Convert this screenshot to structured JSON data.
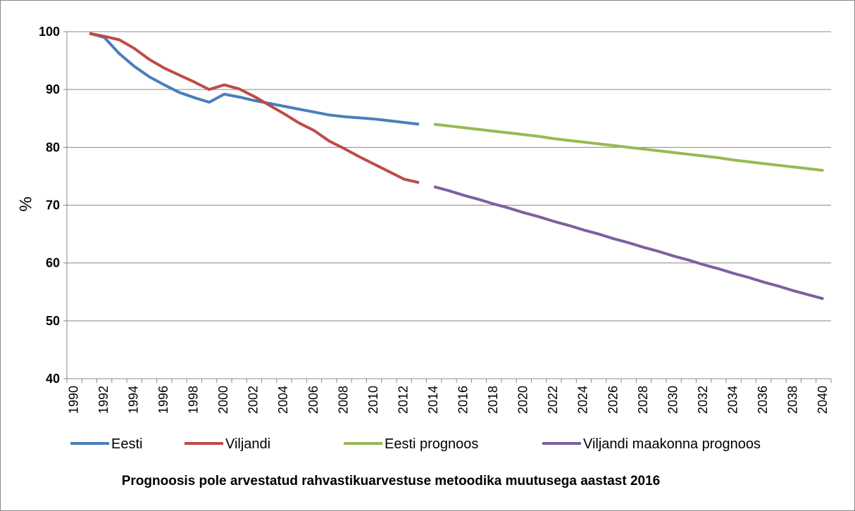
{
  "chart_data": {
    "type": "line",
    "y_label": "%",
    "note": "Prognoosis pole arvestatud rahvastikuarvestuse metoodika muutusega aastast 2016",
    "categories": [
      "1990",
      null,
      "1992",
      null,
      "1994",
      null,
      "1996",
      null,
      "1998",
      null,
      "2000",
      null,
      "2002",
      null,
      "2004",
      null,
      "2006",
      null,
      "2008",
      null,
      "2010",
      null,
      "2012",
      null,
      "2014",
      null,
      "2016",
      null,
      "2018",
      null,
      "2020",
      null,
      "2022",
      null,
      "2024",
      null,
      "2026",
      null,
      "2028",
      null,
      "2030",
      null,
      "2032",
      null,
      "2034",
      null,
      "2036",
      null,
      "2038",
      null,
      "2040"
    ],
    "series": [
      {
        "name": "Eesti",
        "color": "#4a7ebb",
        "values": [
          null,
          99.7,
          99.0,
          96.2,
          94.0,
          92.2,
          90.8,
          89.5,
          88.6,
          87.8,
          89.2,
          88.7,
          88.1,
          87.6,
          87.1,
          86.6,
          86.1,
          85.6,
          85.3,
          85.1,
          84.9,
          84.6,
          84.3,
          84.0,
          null,
          null,
          null,
          null,
          null,
          null,
          null,
          null,
          null,
          null,
          null,
          null,
          null,
          null,
          null,
          null,
          null,
          null,
          null,
          null,
          null,
          null,
          null,
          null,
          null,
          null,
          null
        ]
      },
      {
        "name": "Viljandi",
        "color": "#be4b48",
        "values": [
          null,
          99.7,
          99.2,
          98.6,
          97.1,
          95.2,
          93.7,
          92.5,
          91.3,
          90.0,
          90.8,
          90.1,
          88.8,
          87.3,
          85.8,
          84.2,
          82.9,
          81.1,
          79.8,
          78.4,
          77.1,
          75.8,
          74.5,
          73.9,
          null,
          null,
          null,
          null,
          null,
          null,
          null,
          null,
          null,
          null,
          null,
          null,
          null,
          null,
          null,
          null,
          null,
          null,
          null,
          null,
          null,
          null,
          null,
          null,
          null,
          null,
          null
        ]
      },
      {
        "name": "Eesti prognoos",
        "color": "#98b954",
        "values": [
          null,
          null,
          null,
          null,
          null,
          null,
          null,
          null,
          null,
          null,
          null,
          null,
          null,
          null,
          null,
          null,
          null,
          null,
          null,
          null,
          null,
          null,
          null,
          null,
          84.0,
          83.7,
          83.4,
          83.1,
          82.8,
          82.5,
          82.2,
          81.9,
          81.5,
          81.2,
          80.9,
          80.6,
          80.3,
          80.0,
          79.7,
          79.4,
          79.1,
          78.8,
          78.5,
          78.2,
          77.8,
          77.5,
          77.2,
          76.9,
          76.6,
          76.3,
          76.0
        ]
      },
      {
        "name": "Viljandi maakonna prognoos",
        "color": "#7d60a0",
        "values": [
          null,
          null,
          null,
          null,
          null,
          null,
          null,
          null,
          null,
          null,
          null,
          null,
          null,
          null,
          null,
          null,
          null,
          null,
          null,
          null,
          null,
          null,
          null,
          null,
          73.2,
          72.5,
          71.7,
          71.0,
          70.2,
          69.5,
          68.7,
          68.0,
          67.2,
          66.5,
          65.7,
          65.0,
          64.2,
          63.5,
          62.7,
          62.0,
          61.2,
          60.5,
          59.7,
          59.0,
          58.2,
          57.5,
          56.7,
          56.0,
          55.2,
          54.5,
          53.8
        ]
      }
    ],
    "ylim": [
      40,
      100
    ],
    "yticks": [
      40,
      50,
      60,
      70,
      80,
      90,
      100
    ],
    "grid": true,
    "legend": "bottom"
  }
}
